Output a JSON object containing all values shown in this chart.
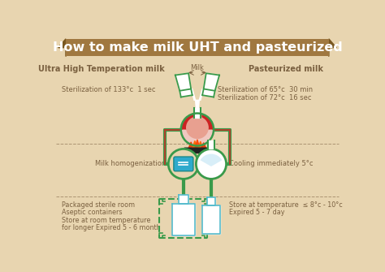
{
  "bg_color": "#e8d5b0",
  "title": "How to make milk UHT and pasteurized",
  "title_bg": "#a07840",
  "title_color": "#ffffff",
  "left_heading": "Ultra High Temperation milk",
  "right_heading": "Pasteurized milk",
  "left_lines": [
    "Sterilization of 133°c  1 sec"
  ],
  "right_lines": [
    "Sterilization of 65°c  30 min",
    "Sterilization of 72°c  16 sec"
  ],
  "milk_label": "Milk",
  "homog_label": "Milk homogenization",
  "cooling_label": "Cooling immediately 5°c",
  "left_bottom_lines": [
    "Packaged sterile room",
    "Aseptic containers",
    "Store at room temperature",
    "for longer Expired 5 - 6 month"
  ],
  "right_bottom_lines": [
    "Store at temperature  ≤ 8°c - 10°c",
    "Expired 5 - 7 day"
  ],
  "green": "#3a9a4a",
  "pipe_red": "#c0392b",
  "blue_box": "#2eaacc",
  "flask_top_color": "#e8c0b0",
  "flask_bottom_color": "#cc2222",
  "heater_color": "#222222",
  "text_color": "#7a6040",
  "bottle_outline": "#55bbcc"
}
